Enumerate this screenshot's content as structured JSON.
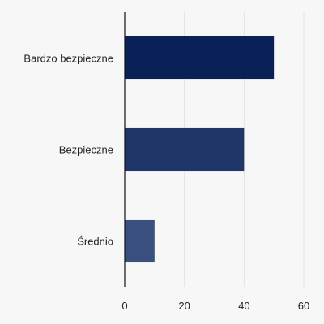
{
  "chart_data": {
    "type": "bar",
    "orientation": "horizontal",
    "categories": [
      "Bardzo bezpieczne",
      "Bezpieczne",
      "Średnio"
    ],
    "values": [
      50,
      40,
      10
    ],
    "xlim": [
      0,
      60
    ],
    "xticks": [
      0,
      20,
      40,
      60
    ],
    "grid": true,
    "bar_colors": [
      "#0a2158",
      "#203668",
      "#3a507f"
    ],
    "background": "#f7f7f7",
    "axis_color": "#111111",
    "grid_color": "#e2e2e2",
    "text_color": "#222222"
  }
}
